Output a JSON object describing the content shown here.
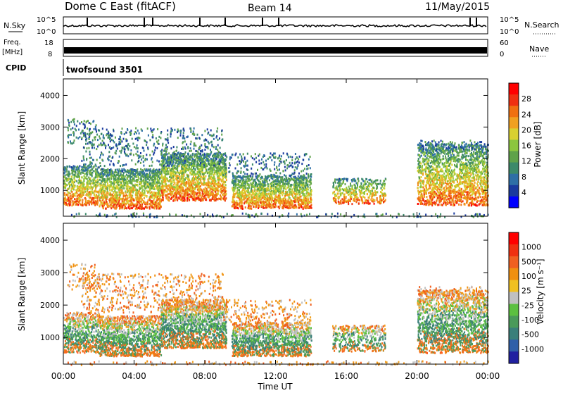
{
  "header": {
    "station": "Dome C East (fitACF)",
    "beam": "Beam 14",
    "date": "11/May/2015"
  },
  "ancillary": {
    "nsky_label": "N.Sky",
    "nsky_ticks": [
      "10^5",
      "10^0"
    ],
    "nsearch_label": "N.Search",
    "freq_label": "Freq.",
    "freq_unit": "[MHz]",
    "freq_ticks": [
      "18",
      "8"
    ],
    "nave_ticks": [
      "60",
      "0"
    ],
    "nave_label": "Nave",
    "cpid_label": "CPID",
    "cpid_value": "twofsound 3501"
  },
  "chart_data": [
    {
      "type": "heatmap",
      "panel": "power",
      "ylabel": "Slant Range [km]",
      "yticks": [
        "4000",
        "3000",
        "2000",
        "1000"
      ],
      "ylim": [
        180,
        4500
      ],
      "colorbar_label": "Power [dB]",
      "colorbar_ticks": [
        "28",
        "24",
        "20",
        "16",
        "12",
        "8",
        "4"
      ],
      "colors": [
        "#0000ff",
        "#1a3a9e",
        "#2e6fa6",
        "#3c8a6a",
        "#5fa24a",
        "#8cc63f",
        "#d8d030",
        "#f0a020",
        "#f07010",
        "#f03010",
        "#ff0000"
      ]
    },
    {
      "type": "heatmap",
      "panel": "velocity",
      "ylabel": "Slant Range [km]",
      "yticks": [
        "4000",
        "3000",
        "2000",
        "1000"
      ],
      "ylim": [
        180,
        4500
      ],
      "colorbar_label": "Velocity [m s⁻¹]",
      "colorbar_ticks": [
        "1000",
        "500",
        "100",
        "25",
        "-25",
        "-100",
        "-500",
        "-1000"
      ],
      "colors": [
        "#2020a0",
        "#2f5fa8",
        "#3a7f7a",
        "#4a9a5a",
        "#5cc040",
        "#c0c0c0",
        "#f0c020",
        "#f09010",
        "#f06020",
        "#f03010",
        "#ff0000"
      ]
    }
  ],
  "xaxis": {
    "ticks": [
      "00:00",
      "04:00",
      "08:00",
      "12:00",
      "16:00",
      "20:00",
      "00:00"
    ],
    "label": "Time UT"
  }
}
